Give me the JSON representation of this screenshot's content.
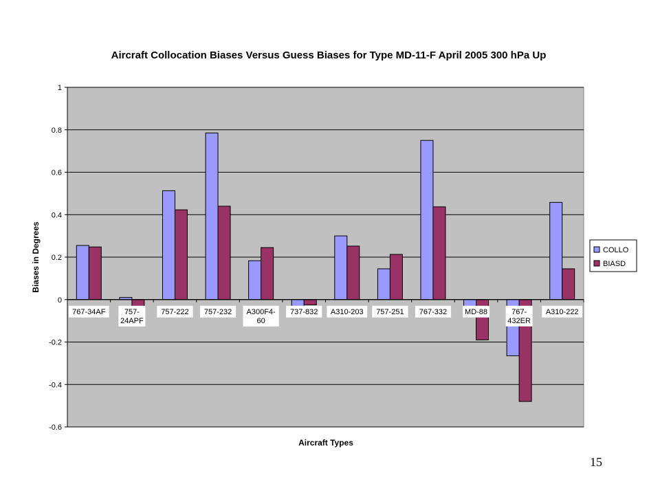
{
  "page": {
    "number": "15"
  },
  "colors": {
    "plot_bg": "#c0c0c0",
    "collo": "#9999ff",
    "biasd": "#993366",
    "grid": "#000000"
  },
  "chart_data": {
    "type": "bar",
    "title": "Aircraft Collocation Biases Versus Guess Biases for Type MD-11-F April 2005 300 hPa Up",
    "xlabel": "Aircraft Types",
    "ylabel": "Biases in Degrees",
    "ylim": [
      -0.6,
      1
    ],
    "yticks": [
      "1",
      "0.8",
      "0.6",
      "0.4",
      "0.2",
      "0",
      "-0.2",
      "-0.4",
      "-0.6"
    ],
    "ytick_values": [
      1,
      0.8,
      0.6,
      0.4,
      0.2,
      0,
      -0.2,
      -0.4,
      -0.6
    ],
    "grid": true,
    "legend_position": "right",
    "categories": [
      [
        "767-34AF"
      ],
      [
        "757-",
        "24APF"
      ],
      [
        "757-222"
      ],
      [
        "757-232"
      ],
      [
        "A300F4-",
        "60"
      ],
      [
        "737-832"
      ],
      [
        "A310-203"
      ],
      [
        "757-251"
      ],
      [
        "767-332"
      ],
      [
        "MD-88"
      ],
      [
        "767-",
        "432ER"
      ],
      [
        "A310-222"
      ]
    ],
    "series": [
      {
        "name": "COLLO",
        "color": "#9999ff",
        "values": [
          0.255,
          0.01,
          0.513,
          0.785,
          0.183,
          -0.035,
          0.3,
          0.145,
          0.75,
          -0.035,
          -0.265,
          0.458
        ]
      },
      {
        "name": "BIASD",
        "color": "#993366",
        "values": [
          0.248,
          -0.07,
          0.423,
          0.44,
          0.245,
          -0.025,
          0.252,
          0.213,
          0.437,
          -0.19,
          -0.48,
          0.145
        ]
      }
    ]
  }
}
